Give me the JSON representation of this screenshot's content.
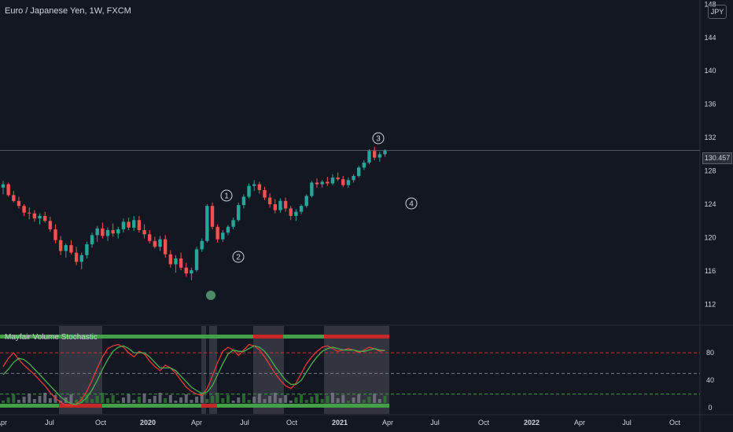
{
  "header": {
    "symbol_line": "Euro / Japanese Yen, 1W, FXCM"
  },
  "currency_badge": "JPY",
  "last_price_label": "130.457",
  "indicator": {
    "name": "Mayfair Volume Stochastic",
    "levels": [
      "80",
      "40",
      "0"
    ]
  },
  "wave_labels": [
    "1",
    "2",
    "3",
    "4"
  ],
  "colors": {
    "background": "#131722",
    "up": "#26a69a",
    "down": "#ef5350",
    "text": "#d1d4dc",
    "grid_line": "#2a2e39",
    "stoch_green": "#4caf50",
    "stoch_red": "#e53935",
    "level_red": "#d32f2f",
    "level_green": "#43a047",
    "shade": "#5d606b"
  },
  "chart_data": [
    {
      "type": "candlestick",
      "title": "Euro / Japanese Yen, 1W, FXCM",
      "y_unit": "JPY",
      "y_ticks": [
        112,
        116,
        120,
        124,
        128,
        132,
        136,
        140,
        144,
        148
      ],
      "ylim": [
        109.5,
        148.5
      ],
      "x_ticks": [
        "Apr",
        "Jul",
        "Oct",
        "2020",
        "Apr",
        "Jul",
        "Oct",
        "2021",
        "Apr",
        "Jul",
        "Oct",
        "2022",
        "Apr",
        "Jul",
        "Oct"
      ],
      "last_price": 130.457,
      "candles_approx": [
        [
          126.0,
          126.8,
          125.2,
          126.4
        ],
        [
          126.4,
          126.6,
          124.9,
          125.1
        ],
        [
          125.1,
          125.6,
          124.2,
          124.4
        ],
        [
          124.4,
          124.9,
          123.5,
          123.8
        ],
        [
          123.8,
          124.0,
          122.6,
          123.0
        ],
        [
          123.0,
          123.6,
          122.2,
          122.9
        ],
        [
          122.9,
          123.3,
          121.9,
          122.3
        ],
        [
          122.3,
          122.9,
          121.6,
          122.6
        ],
        [
          122.6,
          123.1,
          121.8,
          122.0
        ],
        [
          122.0,
          122.5,
          120.7,
          121.0
        ],
        [
          121.0,
          121.6,
          119.3,
          119.7
        ],
        [
          119.7,
          120.2,
          117.9,
          118.4
        ],
        [
          118.4,
          119.3,
          117.6,
          119.1
        ],
        [
          119.1,
          119.7,
          118.0,
          118.2
        ],
        [
          118.2,
          118.9,
          116.7,
          117.1
        ],
        [
          117.1,
          118.2,
          116.2,
          117.9
        ],
        [
          117.9,
          119.5,
          117.5,
          119.2
        ],
        [
          119.2,
          120.6,
          118.8,
          120.3
        ],
        [
          120.3,
          121.4,
          119.5,
          121.1
        ],
        [
          121.1,
          121.8,
          119.9,
          120.2
        ],
        [
          120.2,
          121.2,
          119.6,
          120.9
        ],
        [
          120.9,
          121.7,
          120.1,
          120.5
        ],
        [
          120.5,
          121.3,
          119.9,
          121.0
        ],
        [
          121.0,
          122.3,
          120.6,
          121.9
        ],
        [
          121.9,
          122.4,
          120.9,
          121.2
        ],
        [
          121.2,
          122.6,
          120.8,
          122.1
        ],
        [
          122.1,
          122.6,
          120.6,
          120.9
        ],
        [
          120.9,
          121.6,
          119.9,
          120.4
        ],
        [
          120.4,
          120.9,
          119.3,
          119.6
        ],
        [
          119.6,
          120.1,
          118.7,
          118.9
        ],
        [
          118.9,
          120.2,
          118.4,
          119.8
        ],
        [
          119.8,
          120.3,
          117.6,
          118.0
        ],
        [
          118.0,
          118.5,
          116.4,
          116.8
        ],
        [
          116.8,
          117.9,
          115.8,
          117.5
        ],
        [
          117.5,
          118.2,
          116.1,
          116.4
        ],
        [
          116.4,
          117.0,
          115.3,
          115.7
        ],
        [
          115.7,
          116.4,
          114.9,
          116.1
        ],
        [
          116.1,
          118.9,
          115.9,
          118.6
        ],
        [
          118.6,
          119.9,
          118.3,
          119.6
        ],
        [
          119.6,
          124.0,
          119.4,
          123.8
        ],
        [
          123.8,
          124.2,
          121.0,
          121.3
        ],
        [
          121.3,
          121.6,
          119.4,
          119.8
        ],
        [
          119.8,
          120.9,
          119.5,
          120.6
        ],
        [
          120.6,
          121.5,
          120.3,
          121.3
        ],
        [
          121.3,
          122.4,
          121.0,
          122.1
        ],
        [
          122.1,
          124.2,
          121.9,
          123.9
        ],
        [
          123.9,
          125.2,
          123.5,
          124.9
        ],
        [
          124.9,
          126.5,
          124.7,
          126.2
        ],
        [
          126.2,
          126.9,
          125.6,
          126.4
        ],
        [
          126.4,
          126.7,
          125.3,
          125.7
        ],
        [
          125.7,
          126.1,
          124.5,
          124.8
        ],
        [
          124.8,
          125.3,
          123.6,
          124.0
        ],
        [
          124.0,
          124.6,
          122.9,
          123.3
        ],
        [
          123.3,
          124.7,
          123.0,
          124.4
        ],
        [
          124.4,
          124.8,
          123.1,
          123.5
        ],
        [
          123.5,
          123.8,
          122.1,
          122.6
        ],
        [
          122.6,
          123.4,
          122.0,
          123.1
        ],
        [
          123.1,
          124.0,
          122.8,
          123.8
        ],
        [
          123.8,
          125.2,
          123.6,
          125.0
        ],
        [
          125.0,
          126.8,
          124.8,
          126.6
        ],
        [
          126.6,
          127.1,
          126.0,
          126.4
        ],
        [
          126.4,
          126.9,
          126.0,
          126.7
        ],
        [
          126.7,
          127.3,
          126.2,
          126.5
        ],
        [
          126.5,
          127.6,
          126.3,
          127.2
        ],
        [
          127.2,
          127.8,
          126.8,
          127.0
        ],
        [
          127.0,
          127.4,
          126.1,
          126.3
        ],
        [
          126.3,
          127.2,
          126.0,
          126.9
        ],
        [
          126.9,
          127.6,
          126.6,
          127.4
        ],
        [
          127.4,
          128.6,
          127.2,
          128.4
        ],
        [
          128.4,
          129.3,
          128.1,
          129.0
        ],
        [
          129.0,
          130.6,
          128.8,
          130.4
        ],
        [
          130.4,
          130.9,
          129.3,
          129.6
        ],
        [
          129.6,
          130.3,
          129.1,
          130.0
        ],
        [
          130.0,
          130.6,
          129.7,
          130.457
        ]
      ]
    },
    {
      "type": "line",
      "title": "Mayfair Volume Stochastic",
      "y_ticks": [
        0,
        40,
        80
      ],
      "ylim": [
        -10,
        120
      ],
      "overbought": 80,
      "midline": 50,
      "oversold": 20,
      "series": [
        {
          "values": [
            60,
            72,
            80,
            70,
            62,
            55,
            48,
            40,
            32,
            22,
            14,
            8,
            4,
            3,
            6,
            12,
            24,
            40,
            58,
            74,
            86,
            90,
            92,
            88,
            80,
            74,
            82,
            78,
            68,
            60,
            54,
            62,
            58,
            50,
            40,
            30,
            24,
            20,
            18,
            28,
            46,
            66,
            82,
            88,
            84,
            76,
            84,
            92,
            90,
            84,
            74,
            62,
            50,
            40,
            32,
            28,
            36,
            50,
            64,
            74,
            82,
            88,
            90,
            86,
            82,
            84,
            86,
            84,
            80,
            84,
            88,
            86,
            82,
            84
          ]
        },
        {
          "values": [
            48,
            56,
            66,
            72,
            70,
            64,
            56,
            48,
            40,
            32,
            24,
            16,
            10,
            6,
            5,
            8,
            15,
            26,
            40,
            56,
            70,
            82,
            88,
            90,
            86,
            80,
            80,
            80,
            74,
            66,
            58,
            58,
            58,
            54,
            46,
            38,
            30,
            25,
            21,
            23,
            32,
            48,
            64,
            78,
            84,
            82,
            82,
            86,
            90,
            88,
            82,
            72,
            60,
            50,
            40,
            34,
            34,
            40,
            52,
            64,
            74,
            82,
            86,
            88,
            86,
            84,
            84,
            84,
            82,
            82,
            84,
            86,
            84,
            83
          ]
        }
      ]
    }
  ]
}
